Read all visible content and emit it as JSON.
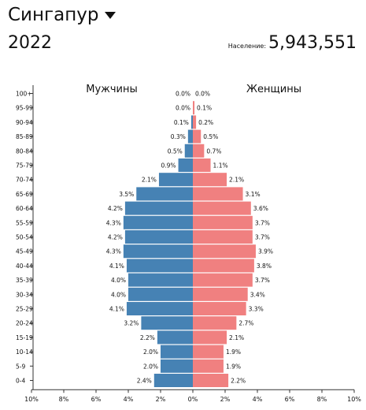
{
  "header": {
    "country": "Сингапур",
    "year": "2022",
    "population_label": "Население:",
    "population_value": "5,943,551"
  },
  "chart_data": {
    "type": "bar",
    "subtype": "population-pyramid",
    "left_label": "Мужчины",
    "right_label": "Женщины",
    "age_groups": [
      "100+",
      "95-99",
      "90-94",
      "85-89",
      "80-84",
      "75-79",
      "70-74",
      "65-69",
      "60-64",
      "55-59",
      "50-54",
      "45-49",
      "40-44",
      "35-39",
      "30-34",
      "25-29",
      "20-24",
      "15-19",
      "10-14",
      "5-9",
      "0-4"
    ],
    "series": [
      {
        "name": "Мужчины",
        "values": [
          0.0,
          0.0,
          0.1,
          0.3,
          0.5,
          0.9,
          2.1,
          3.5,
          4.2,
          4.3,
          4.2,
          4.3,
          4.1,
          4.0,
          4.0,
          4.1,
          3.2,
          2.2,
          2.0,
          2.0,
          2.4
        ]
      },
      {
        "name": "Женщины",
        "values": [
          0.0,
          0.1,
          0.2,
          0.5,
          0.7,
          1.1,
          2.1,
          3.1,
          3.6,
          3.7,
          3.7,
          3.9,
          3.8,
          3.7,
          3.4,
          3.3,
          2.7,
          2.1,
          1.9,
          1.9,
          2.2
        ]
      }
    ],
    "x_ticks": [
      "10%",
      "8%",
      "6%",
      "4%",
      "2%",
      "0%",
      "2%",
      "4%",
      "6%",
      "8%",
      "10%"
    ],
    "xlim": [
      -10,
      10
    ],
    "colors": {
      "male": "#4682b4",
      "female": "#f08080"
    }
  }
}
